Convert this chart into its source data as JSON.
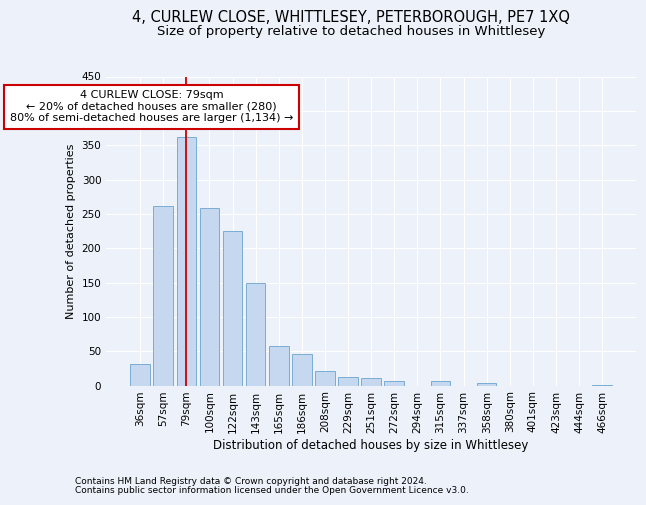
{
  "title1": "4, CURLEW CLOSE, WHITTLESEY, PETERBOROUGH, PE7 1XQ",
  "title2": "Size of property relative to detached houses in Whittlesey",
  "xlabel": "Distribution of detached houses by size in Whittlesey",
  "ylabel": "Number of detached properties",
  "categories": [
    "36sqm",
    "57sqm",
    "79sqm",
    "100sqm",
    "122sqm",
    "143sqm",
    "165sqm",
    "186sqm",
    "208sqm",
    "229sqm",
    "251sqm",
    "272sqm",
    "294sqm",
    "315sqm",
    "337sqm",
    "358sqm",
    "380sqm",
    "401sqm",
    "423sqm",
    "444sqm",
    "466sqm"
  ],
  "values": [
    31,
    262,
    362,
    258,
    225,
    149,
    58,
    46,
    21,
    12,
    11,
    6,
    0,
    6,
    0,
    4,
    0,
    0,
    0,
    0,
    1
  ],
  "bar_color": "#c5d8f0",
  "bar_edge_color": "#7aadd4",
  "vline_x_idx": 2,
  "vline_color": "#cc0000",
  "annotation_line1": "4 CURLEW CLOSE: 79sqm",
  "annotation_line2": "← 20% of detached houses are smaller (280)",
  "annotation_line3": "80% of semi-detached houses are larger (1,134) →",
  "annotation_box_color": "#ffffff",
  "annotation_box_edge": "#cc0000",
  "ylim": [
    0,
    450
  ],
  "yticks": [
    0,
    50,
    100,
    150,
    200,
    250,
    300,
    350,
    400,
    450
  ],
  "footer1": "Contains HM Land Registry data © Crown copyright and database right 2024.",
  "footer2": "Contains public sector information licensed under the Open Government Licence v3.0.",
  "bg_color": "#edf2fa",
  "grid_color": "#ffffff",
  "title1_fontsize": 10.5,
  "title2_fontsize": 9.5,
  "xlabel_fontsize": 8.5,
  "ylabel_fontsize": 8,
  "tick_fontsize": 7.5,
  "annotation_fontsize": 8,
  "footer_fontsize": 6.5
}
